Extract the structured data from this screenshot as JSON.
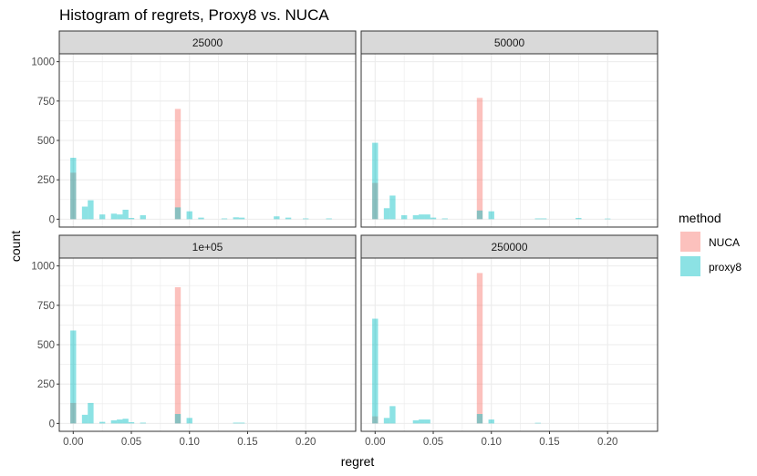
{
  "chart_data": {
    "type": "bar",
    "title": "Histogram of regrets, Proxy8 vs. NUCA",
    "xlabel": "regret",
    "ylabel": "count",
    "xlim": [
      -0.012,
      0.243
    ],
    "ylim": [
      -50,
      1050
    ],
    "xticks": [
      0.0,
      0.05,
      0.1,
      0.15,
      0.2
    ],
    "xtick_labels": [
      "0.00",
      "0.05",
      "0.10",
      "0.15",
      "0.20"
    ],
    "yticks": [
      0,
      250,
      500,
      750,
      1000
    ],
    "ytick_labels": [
      "0",
      "250",
      "500",
      "750",
      "1000"
    ],
    "bin_width": 0.005,
    "grid": true,
    "legend": {
      "title": "method",
      "position": "right",
      "entries": [
        {
          "label": "NUCA",
          "color": "#F8766D"
        },
        {
          "label": "proxy8",
          "color": "#00BFC4"
        }
      ]
    },
    "colors": {
      "NUCA": "#F8766D",
      "proxy8": "#00BFC4",
      "strip_bg": "#d9d9d9",
      "frame": "#333333",
      "grid": "#ebebeb"
    },
    "bar_alpha": 0.45,
    "facets": [
      {
        "label": "25000",
        "series": [
          {
            "name": "NUCA",
            "x": [
              0.0,
              0.09
            ],
            "values": [
              295,
              700
            ]
          },
          {
            "name": "proxy8",
            "x": [
              0.0,
              0.01,
              0.015,
              0.025,
              0.035,
              0.04,
              0.045,
              0.05,
              0.06,
              0.09,
              0.1,
              0.11,
              0.13,
              0.14,
              0.145,
              0.175,
              0.185,
              0.2,
              0.22
            ],
            "values": [
              390,
              80,
              120,
              30,
              35,
              30,
              60,
              8,
              25,
              75,
              50,
              10,
              5,
              12,
              10,
              18,
              10,
              5,
              5
            ]
          }
        ]
      },
      {
        "label": "50000",
        "series": [
          {
            "name": "NUCA",
            "x": [
              0.0,
              0.09
            ],
            "values": [
              230,
              770
            ]
          },
          {
            "name": "proxy8",
            "x": [
              0.0,
              0.01,
              0.015,
              0.025,
              0.035,
              0.04,
              0.045,
              0.05,
              0.06,
              0.09,
              0.1,
              0.14,
              0.145,
              0.175,
              0.2
            ],
            "values": [
              485,
              70,
              150,
              25,
              25,
              30,
              30,
              10,
              5,
              55,
              50,
              5,
              5,
              8,
              4
            ]
          }
        ]
      },
      {
        "label": "1e+05",
        "series": [
          {
            "name": "NUCA",
            "x": [
              0.0,
              0.09
            ],
            "values": [
              130,
              865
            ]
          },
          {
            "name": "proxy8",
            "x": [
              0.0,
              0.01,
              0.015,
              0.025,
              0.035,
              0.04,
              0.045,
              0.05,
              0.06,
              0.09,
              0.1,
              0.14,
              0.145
            ],
            "values": [
              590,
              55,
              130,
              10,
              20,
              25,
              30,
              8,
              5,
              60,
              35,
              5,
              5
            ]
          }
        ]
      },
      {
        "label": "250000",
        "series": [
          {
            "name": "NUCA",
            "x": [
              0.0,
              0.09
            ],
            "values": [
              45,
              955
            ]
          },
          {
            "name": "proxy8",
            "x": [
              0.0,
              0.01,
              0.015,
              0.035,
              0.04,
              0.045,
              0.09,
              0.1,
              0.14
            ],
            "values": [
              665,
              35,
              110,
              20,
              25,
              25,
              60,
              25,
              4
            ]
          }
        ]
      }
    ]
  }
}
